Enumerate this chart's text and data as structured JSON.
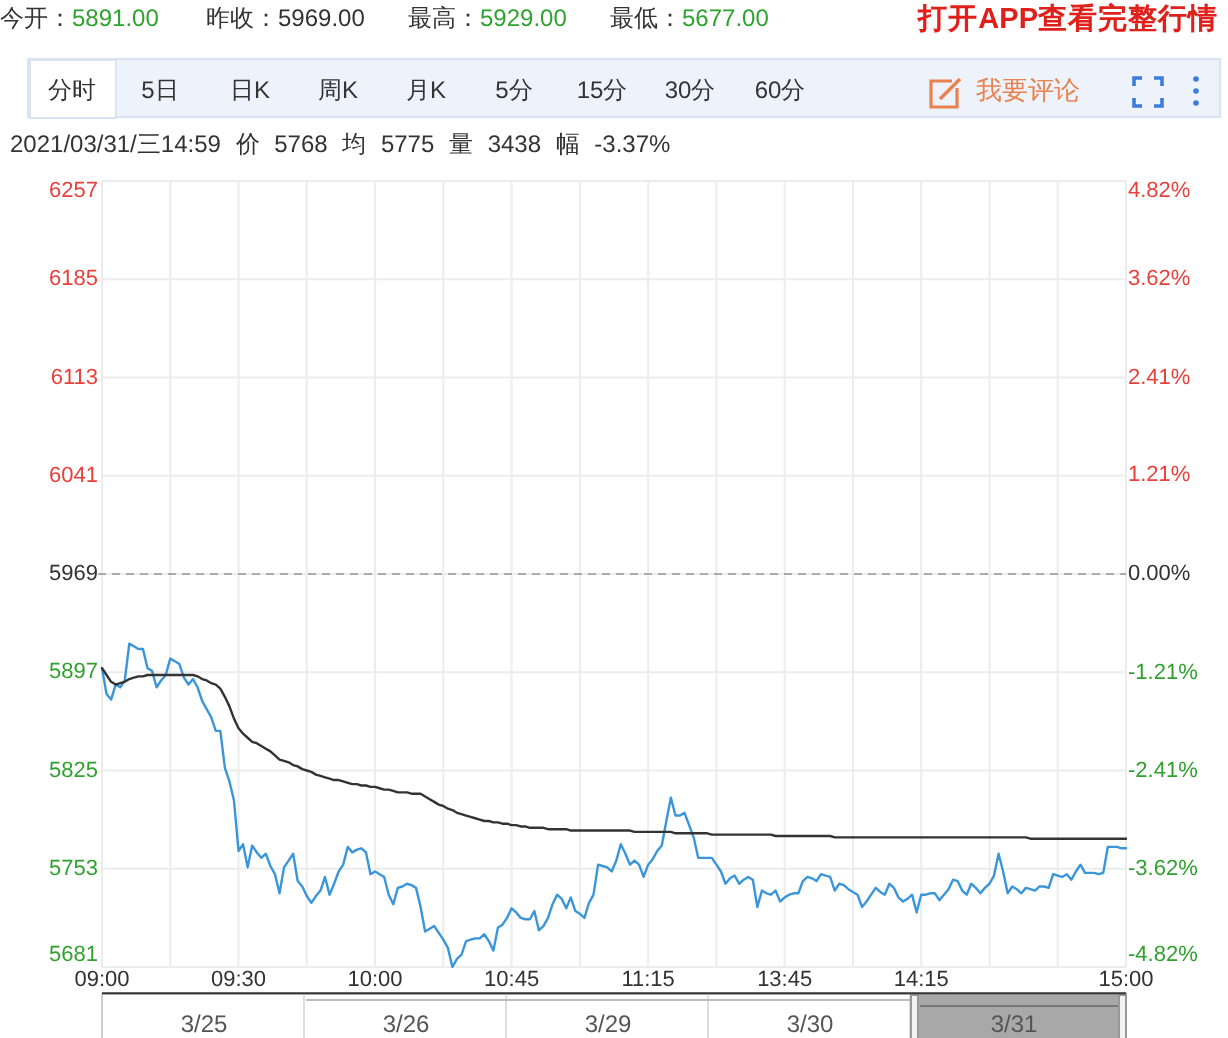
{
  "chart_data": {
    "type": "line",
    "categories": [
      "09:00",
      null,
      null,
      null,
      null,
      null,
      null,
      null,
      null,
      null,
      null,
      null,
      null,
      null,
      null,
      null,
      null,
      null,
      null,
      null,
      null,
      null,
      null,
      null,
      null,
      null,
      null,
      null,
      null,
      null,
      "09:30",
      null,
      null,
      null,
      null,
      null,
      null,
      null,
      null,
      null,
      null,
      null,
      null,
      null,
      null,
      null,
      null,
      null,
      null,
      null,
      null,
      null,
      null,
      null,
      null,
      null,
      null,
      null,
      null,
      null,
      "10:00",
      null,
      null,
      null,
      null,
      null,
      null,
      null,
      null,
      null,
      null,
      null,
      null,
      null,
      null,
      null,
      null,
      null,
      null,
      null,
      null,
      null,
      null,
      null,
      null,
      null,
      null,
      null,
      null,
      null,
      "10:45",
      null,
      null,
      null,
      null,
      null,
      null,
      null,
      null,
      null,
      null,
      null,
      null,
      null,
      null,
      null,
      null,
      null,
      null,
      null,
      null,
      null,
      null,
      null,
      null,
      null,
      null,
      null,
      null,
      null,
      "11:15",
      null,
      null,
      null,
      null,
      null,
      null,
      null,
      null,
      null,
      null,
      null,
      null,
      null,
      null,
      null,
      null,
      null,
      null,
      null,
      null,
      null,
      null,
      null,
      null,
      null,
      null,
      null,
      null,
      null,
      "13:45",
      null,
      null,
      null,
      null,
      null,
      null,
      null,
      null,
      null,
      null,
      null,
      null,
      null,
      null,
      null,
      null,
      null,
      null,
      null,
      null,
      null,
      null,
      null,
      null,
      null,
      null,
      null,
      null,
      null,
      "14:15",
      null,
      null,
      null,
      null,
      null,
      null,
      null,
      null,
      null,
      null,
      null,
      null,
      null,
      null,
      null,
      null,
      null,
      null,
      null,
      null,
      null,
      null,
      null,
      null,
      null,
      null,
      null,
      null,
      null,
      null,
      null,
      null,
      null,
      null,
      null,
      null,
      null,
      null,
      null,
      null,
      null,
      null,
      null,
      null,
      "15:00"
    ],
    "ylim": [
      5681,
      6257
    ],
    "yticks": [
      5681,
      5753,
      5825,
      5897,
      5969,
      6041,
      6113,
      6185,
      6257
    ],
    "y2lim": [
      -4.82,
      4.82
    ],
    "y2ticks": [
      {
        "value": -4.82,
        "label": "-4.82%"
      },
      {
        "value": -3.62,
        "label": "-3.62%"
      },
      {
        "value": -2.41,
        "label": "-2.41%"
      },
      {
        "value": -1.21,
        "label": "-1.21%"
      },
      {
        "value": 0,
        "label": "0.00%"
      },
      {
        "value": 1.21,
        "label": "1.21%"
      },
      {
        "value": 2.41,
        "label": "2.41%"
      },
      {
        "value": 3.62,
        "label": "3.62%"
      },
      {
        "value": 4.82,
        "label": "4.82%"
      }
    ],
    "grid": true,
    "ref_lines": [
      {
        "axis": "y",
        "value": 5969,
        "color": "#aaaaaa",
        "line_style": "dashed"
      }
    ],
    "series": [
      {
        "color": "#3a96d8",
        "values": [
          5900,
          5881,
          5877,
          5888,
          5886,
          5891,
          5918,
          5916,
          5914,
          5914,
          5900,
          5898,
          5886,
          5891,
          5895,
          5907,
          5905,
          5903,
          5893,
          5888,
          5892,
          5886,
          5876,
          5870,
          5864,
          5854,
          5854,
          5827,
          5817,
          5803,
          5766,
          5771,
          5754,
          5770,
          5765,
          5761,
          5764,
          5755,
          5749,
          5735,
          5754,
          5759,
          5764,
          5744,
          5740,
          5733,
          5728,
          5733,
          5737,
          5747,
          5734,
          5742,
          5751,
          5756,
          5769,
          5765,
          5767,
          5768,
          5765,
          5749,
          5751,
          5749,
          5747,
          5734,
          5727,
          5739,
          5740,
          5742,
          5741,
          5739,
          5725,
          5707,
          5709,
          5711,
          5706,
          5701,
          5695,
          5681,
          5687,
          5690,
          5700,
          5701,
          5702,
          5702,
          5705,
          5700,
          5693,
          5710,
          5712,
          5717,
          5724,
          5721,
          5717,
          5716,
          5716,
          5722,
          5708,
          5711,
          5717,
          5727,
          5734,
          5731,
          5724,
          5732,
          5722,
          5720,
          5717,
          5728,
          5734,
          5756,
          5755,
          5754,
          5751,
          5759,
          5771,
          5764,
          5756,
          5759,
          5756,
          5747,
          5756,
          5760,
          5766,
          5770,
          5788,
          5805,
          5792,
          5792,
          5794,
          5785,
          5776,
          5761,
          5761,
          5761,
          5761,
          5756,
          5751,
          5742,
          5746,
          5748,
          5742,
          5745,
          5747,
          5745,
          5725,
          5737,
          5735,
          5734,
          5737,
          5729,
          5732,
          5734,
          5735,
          5735,
          5744,
          5747,
          5746,
          5744,
          5749,
          5748,
          5747,
          5737,
          5742,
          5741,
          5738,
          5736,
          5734,
          5725,
          5729,
          5734,
          5739,
          5736,
          5734,
          5742,
          5739,
          5732,
          5729,
          5731,
          5734,
          5721,
          5734,
          5734,
          5735,
          5735,
          5730,
          5734,
          5738,
          5745,
          5744,
          5737,
          5734,
          5742,
          5739,
          5735,
          5739,
          5742,
          5748,
          5764,
          5751,
          5735,
          5740,
          5738,
          5735,
          5739,
          5738,
          5737,
          5740,
          5740,
          5739,
          5749,
          5748,
          5747,
          5749,
          5745,
          5751,
          5756,
          5750,
          5750,
          5750,
          5749,
          5750,
          5769,
          5769,
          5769,
          5768,
          5768
        ]
      },
      {
        "color": "#333333",
        "values": [
          5900,
          5895,
          5890,
          5888,
          5889,
          5890,
          5892,
          5893,
          5894,
          5894,
          5895,
          5895,
          5895,
          5895,
          5895,
          5895,
          5895,
          5895,
          5895,
          5895,
          5895,
          5894,
          5892,
          5891,
          5889,
          5888,
          5885,
          5879,
          5872,
          5863,
          5856,
          5852,
          5849,
          5846,
          5845,
          5843,
          5841,
          5839,
          5836,
          5833,
          5832,
          5831,
          5829,
          5828,
          5826,
          5825,
          5824,
          5822,
          5821,
          5820,
          5819,
          5818,
          5818,
          5817,
          5816,
          5815,
          5815,
          5814,
          5814,
          5813,
          5813,
          5812,
          5811,
          5811,
          5810,
          5809,
          5809,
          5809,
          5808,
          5808,
          5808,
          5806,
          5804,
          5802,
          5800,
          5799,
          5797,
          5796,
          5794,
          5793,
          5792,
          5791,
          5790,
          5789,
          5788,
          5788,
          5787,
          5787,
          5786,
          5786,
          5785,
          5785,
          5784,
          5784,
          5783,
          5783,
          5783,
          5783,
          5782,
          5782,
          5782,
          5782,
          5782,
          5781,
          5781,
          5781,
          5781,
          5781,
          5781,
          5781,
          5781,
          5781,
          5781,
          5781,
          5781,
          5781,
          5781,
          5780,
          5780,
          5780,
          5780,
          5780,
          5780,
          5780,
          5780,
          5780,
          5779,
          5779,
          5779,
          5779,
          5779,
          5779,
          5779,
          5779,
          5778,
          5778,
          5778,
          5778,
          5778,
          5778,
          5778,
          5778,
          5778,
          5778,
          5778,
          5778,
          5778,
          5778,
          5777,
          5777,
          5777,
          5777,
          5777,
          5777,
          5777,
          5777,
          5777,
          5777,
          5777,
          5777,
          5777,
          5776,
          5776,
          5776,
          5776,
          5776,
          5776,
          5776,
          5776,
          5776,
          5776,
          5776,
          5776,
          5776,
          5776,
          5776,
          5776,
          5776,
          5776,
          5776,
          5776,
          5776,
          5776,
          5776,
          5776,
          5776,
          5776,
          5776,
          5776,
          5776,
          5776,
          5776,
          5776,
          5776,
          5776,
          5776,
          5776,
          5776,
          5776,
          5776,
          5776,
          5776,
          5776,
          5776,
          5775,
          5775,
          5775,
          5775,
          5775,
          5775,
          5775,
          5775,
          5775,
          5775,
          5775,
          5775,
          5775,
          5775,
          5775,
          5775,
          5775,
          5775,
          5775,
          5775,
          5775,
          5775
        ]
      }
    ],
    "annotations": [
      "今开：",
      "5891.00",
      "昨收：",
      "5969.00",
      "最高：",
      "5929.00",
      "最低：",
      "5677.00",
      "打开APP查看完整行情",
      "分时",
      "5日",
      "日K",
      "周K",
      "月K",
      "5分",
      "15分",
      "30分",
      "60分",
      "我要评论",
      "2021/03/31/三14:59 价 5768 均 5775 量 3438 幅 -3.37%",
      "3/25",
      "3/26",
      "3/29",
      "3/30",
      "3/31"
    ]
  }
}
